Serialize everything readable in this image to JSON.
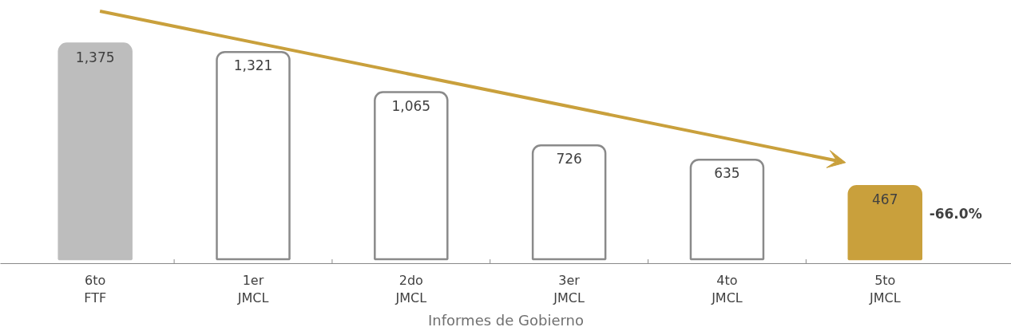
{
  "chart_data": {
    "type": "bar",
    "xlabel": "Informes de Gobierno",
    "categories": [
      "6to\nFTF",
      "1er\nJMCL",
      "2do\nJMCL",
      "3er\nJMCL",
      "4to\nJMCL",
      "5to\nJMCL"
    ],
    "values": [
      1375,
      1321,
      1065,
      726,
      635,
      467
    ],
    "colors": [
      "#bdbdbd",
      "#ffffff",
      "#ffffff",
      "#ffffff",
      "#ffffff",
      "#c9a03c"
    ],
    "value_labels": [
      "1,375",
      "1,321",
      "1,065",
      "726",
      "635",
      "467"
    ],
    "annotations": [
      "-66.0%"
    ],
    "grid": false
  }
}
